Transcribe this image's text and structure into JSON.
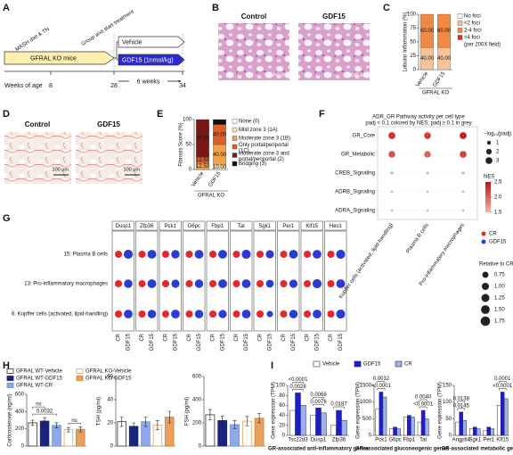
{
  "panels": [
    "A",
    "B",
    "C",
    "D",
    "E",
    "F",
    "G",
    "H",
    "I"
  ],
  "schematic": {
    "diet": "MASH diet & TN",
    "group": "Group and start treatment",
    "mice": "GFRAL KO mice",
    "vehicle": "Vehicle",
    "gdf15": "GDF15 (1nmol/kg)",
    "weeks_label": "Weeks of age",
    "weeks": [
      "8",
      "28",
      "34"
    ],
    "duration": "6 weeks"
  },
  "histology": {
    "groups": [
      "Control",
      "GDF15"
    ],
    "scale_bar": "100 µm"
  },
  "chart_data": [
    {
      "type": "stacked_bar",
      "ylabel": "Lobular Inflammation (%)",
      "group_label": "GFRAL KO",
      "categories": [
        "Vehicle",
        "GDF15"
      ],
      "series": [
        {
          "name": "No foci",
          "color": "#ffffff",
          "values": [
            0,
            0
          ]
        },
        {
          "name": "<2 foci",
          "color": "#f7c49a",
          "values": [
            40,
            40
          ],
          "value_labels": [
            "40.00",
            "40.00"
          ]
        },
        {
          "name": "2-4 foci",
          "color": "#ee8a45",
          "values": [
            60,
            60
          ],
          "value_labels": [
            "60.00",
            "60.00"
          ]
        },
        {
          "name": ">4 foci",
          "color": "#d7342a",
          "values": [
            0,
            0
          ]
        }
      ],
      "legend_note": "(per 200X field)",
      "ylim": [
        0,
        100
      ],
      "yticks": [
        0,
        25,
        50,
        75,
        100
      ]
    },
    {
      "type": "stacked_bar",
      "ylabel": "Fibrosis Score (%)",
      "group_label": "GFRAL KO",
      "categories": [
        "Vehicle",
        "GDF15"
      ],
      "series": [
        {
          "name": "None (0)",
          "color": "#ffffff",
          "values": [
            0,
            0
          ]
        },
        {
          "name": "Mild zone 3 (1A)",
          "color": "#fde7b0",
          "values": [
            0,
            10
          ],
          "value_labels": [
            null,
            "10.00"
          ]
        },
        {
          "name": "Moderate zone 3 (1B)",
          "color": "#f4a24a",
          "values": [
            12.5,
            40
          ],
          "value_labels": [
            "12.50",
            "40.00"
          ]
        },
        {
          "name": "Only portal/periportal (1C)",
          "color": "#d8612a",
          "values": [
            12.5,
            40
          ],
          "value_labels": [
            "12.50",
            "40.00"
          ]
        },
        {
          "name": "Moderate zone 3 and portal/periportal (2)",
          "color": "#7a1818",
          "values": [
            75,
            0
          ],
          "value_labels": [
            "75.00",
            null
          ]
        },
        {
          "name": "Bridging (3)",
          "color": "#111111",
          "values": [
            0,
            10
          ],
          "value_labels": [
            null,
            "10.00"
          ]
        }
      ],
      "ylim": [
        0,
        100
      ],
      "yticks": [
        0,
        50,
        100
      ]
    },
    {
      "type": "dotplot",
      "title": "ADR_GR Pathway activity per cell type",
      "subtitle": "padj < 0.1 colored by NES; padj ≥ 0.1 in grey",
      "rows": [
        "GR_Core",
        "GR_Metabolic",
        "CREB_Signaling",
        "ADRB_Signaling",
        "ADRA_Signaling"
      ],
      "columns": [
        "Kupffer cells (activated, lipid-handling)",
        "Plasma B cells",
        "Pro-inflammatory macrophages"
      ],
      "values": [
        [
          3.1,
          3.0,
          3.2
        ],
        [
          2.9,
          2.8,
          3.0
        ],
        [
          0.6,
          0.5,
          0.6
        ],
        [
          0.4,
          0.3,
          0.4
        ],
        [
          0.3,
          0.3,
          0.3
        ]
      ],
      "nes": [
        [
          2.3,
          2.2,
          2.4
        ],
        [
          2.1,
          2.0,
          2.2
        ],
        [
          null,
          null,
          null
        ],
        [
          null,
          null,
          null
        ],
        [
          null,
          null,
          null
        ]
      ],
      "size_label": "−log₁₀(padj)",
      "size_ticks": [
        1,
        2,
        3
      ],
      "color_label": "NES",
      "color_ticks": [
        2.5,
        {
          "value": 2,
          "label": "2.0"
        },
        1.5
      ],
      "low_color": "#f6b39a",
      "high_color": "#c0121b",
      "na_color": "#bdbdbd"
    },
    {
      "type": "dotplot_pairs",
      "genes": [
        "Dusp1",
        "Zfp36",
        "Pck1",
        "G6pc",
        "Fbp1",
        "Tat",
        "Sgk1",
        "Per1",
        "Klf15",
        "Hes1"
      ],
      "rows": [
        "15: Plasma B cells",
        "13: Pro-inflammatory macrophages",
        "6: Kupffer cells (activated, lipid-handling)"
      ],
      "series": [
        {
          "name": "CR",
          "color": "#e8262b",
          "values": [
            [
              1,
              1,
              1,
              1,
              1,
              1,
              1,
              1,
              1,
              1
            ],
            [
              1,
              1,
              1,
              1,
              1,
              1,
              1,
              1,
              1,
              1
            ],
            [
              1,
              1,
              1,
              1,
              1,
              1,
              1,
              1,
              1,
              1
            ]
          ]
        },
        {
          "name": "GDF15",
          "color": "#2b3bd6",
          "values": [
            [
              1.6,
              1.5,
              1.4,
              1.5,
              1.5,
              1.6,
              1.3,
              1.5,
              1.5,
              1.6
            ],
            [
              1.4,
              1.5,
              1.3,
              1.4,
              1.5,
              1.5,
              1.2,
              1.3,
              1.6,
              1.5
            ],
            [
              1.5,
              1.4,
              1.5,
              1.4,
              1.3,
              1.5,
              0.8,
              1.4,
              1.5,
              1.6
            ]
          ]
        }
      ],
      "size_label": "Relative to CR",
      "size_ticks": [
        0.75,
        {
          "value": 1,
          "label": "1.00"
        },
        1.25,
        {
          "value": 1.5,
          "label": "1.50"
        },
        1.75
      ]
    },
    {
      "type": "bar",
      "ylabel": "Corticosterone (ng/ml)",
      "categories": [
        "GFRAL WT-Vehicle",
        "GFRAL WT-GDF15",
        "GFRAL WT-CR",
        "GFRAL KO-Vehicle",
        "GFRAL KO-GDF15"
      ],
      "values": [
        270,
        290,
        240,
        190,
        195
      ],
      "errors": [
        30,
        40,
        30,
        25,
        30
      ],
      "colors": [
        "#ffffff",
        "#1a237e",
        "#8fa8e8",
        "#ffffff",
        "#e8a05c"
      ],
      "edge_colors": [
        "#333333",
        "#1a237e",
        "#6f88cc",
        "#e8a05c",
        "#c8803c"
      ],
      "annotations": [
        "ns",
        "0.0032",
        "ns"
      ],
      "ylim": [
        0,
        600
      ],
      "yticks": [
        0,
        200,
        400,
        600
      ]
    },
    {
      "type": "bar",
      "ylabel": "TSH (pg/ml)",
      "values": [
        21,
        17,
        21,
        18,
        25
      ],
      "errors": [
        4,
        3,
        4,
        4,
        5
      ],
      "colors": [
        "#ffffff",
        "#1a237e",
        "#8fa8e8",
        "#ffffff",
        "#e8a05c"
      ],
      "edge_colors": [
        "#333333",
        "#1a237e",
        "#6f88cc",
        "#e8a05c",
        "#c8803c"
      ],
      "ylim": [
        0,
        60
      ],
      "yticks": [
        0,
        20,
        40,
        60
      ]
    },
    {
      "type": "bar",
      "ylabel": "FSH (pg/ml)",
      "values": [
        270,
        220,
        185,
        215,
        240
      ],
      "errors": [
        45,
        40,
        35,
        40,
        40
      ],
      "colors": [
        "#ffffff",
        "#1a237e",
        "#8fa8e8",
        "#ffffff",
        "#e8a05c"
      ],
      "edge_colors": [
        "#333333",
        "#1a237e",
        "#6f88cc",
        "#e8a05c",
        "#c8803c"
      ],
      "ylim": [
        0,
        600
      ],
      "yticks": [
        0,
        200,
        400,
        600
      ]
    },
    {
      "type": "grouped_bar",
      "ylabel": "Gene expression (TPM)",
      "xlabel": "GR-associated anti-inflammatory genes",
      "categories": [
        "Tsc22d3",
        "Dusp1",
        "Zfp36"
      ],
      "series": [
        {
          "name": "Vehicle",
          "color": "#ffffff",
          "values": [
            50,
            40,
            20
          ]
        },
        {
          "name": "GDF15",
          "color": "#1f1fbf",
          "values": [
            85,
            55,
            50
          ]
        },
        {
          "name": "CR",
          "color": "#9db0f0",
          "values": [
            60,
            45,
            30
          ]
        }
      ],
      "annotations": [
        "<0.0001",
        "0.0028",
        "0.0076",
        "0.0068",
        "0.0187"
      ],
      "ylim": [
        0,
        100
      ],
      "yticks": [
        0,
        20,
        40,
        60,
        80,
        100
      ]
    },
    {
      "type": "grouped_bar",
      "ylabel": "Gene expression (TPM)",
      "xlabel": "GR-associated gluconeogenic genes",
      "categories": [
        "Pck1",
        "G6pc",
        "Fbp1",
        "Tat"
      ],
      "series": [
        {
          "color": "#ffffff",
          "values": [
            800,
            200,
            550,
            400
          ]
        },
        {
          "color": "#1f1fbf",
          "values": [
            1300,
            250,
            600,
            750
          ]
        },
        {
          "color": "#9db0f0",
          "values": [
            1150,
            200,
            550,
            500
          ]
        }
      ],
      "annotations": [
        "0.0032",
        "<0.0001",
        "0.0040",
        "<0.0001"
      ],
      "ylim": [
        0,
        1500
      ],
      "yticks": [
        0,
        500,
        1000,
        1500
      ]
    },
    {
      "type": "grouped_bar",
      "ylabel": "Gene expression (TPM)",
      "xlabel": "GR-associated metabolic genes",
      "categories": [
        "Angptl4",
        "Sgk1",
        "Per1",
        "Klf15"
      ],
      "series": [
        {
          "color": "#ffffff",
          "values": [
            40,
            20,
            15,
            90
          ]
        },
        {
          "color": "#1f1fbf",
          "values": [
            70,
            25,
            25,
            130
          ]
        },
        {
          "color": "#9db0f0",
          "values": [
            45,
            20,
            20,
            110
          ]
        }
      ],
      "annotations": [
        "0.0138",
        "0.0145",
        "0.0001",
        "<0.0001"
      ],
      "ylim": [
        0,
        150
      ],
      "yticks": [
        0,
        50,
        100,
        150
      ]
    }
  ]
}
